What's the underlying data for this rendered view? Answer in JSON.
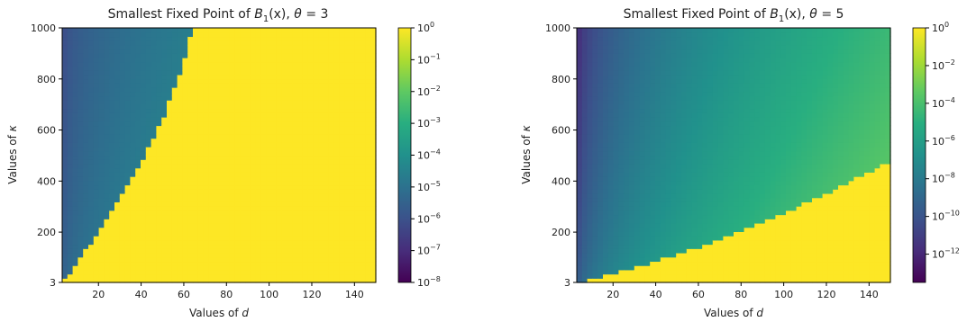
{
  "chart_data": [
    {
      "type": "heatmap",
      "title": "Smallest Fixed Point of B₁(x), θ = 3",
      "title_parts": {
        "prefix": "Smallest Fixed Point of ",
        "fn": "B",
        "sub": "1",
        "arg": "(x), ",
        "param": "θ",
        "eq": " = 3"
      },
      "xlabel": "Values of d",
      "ylabel": "Values of κ",
      "xlim": [
        3,
        150
      ],
      "ylim": [
        3,
        1000
      ],
      "xticks": [
        20,
        40,
        60,
        80,
        100,
        120,
        140
      ],
      "yticks": [
        3,
        200,
        400,
        600,
        800,
        1000
      ],
      "colormap": "viridis",
      "colorbar": {
        "scale": "log",
        "min_exp": -8,
        "max_exp": 0,
        "tick_exponents": [
          0,
          -1,
          -2,
          -3,
          -4,
          -5,
          -6,
          -7,
          -8
        ],
        "tick_labels": [
          "10^0",
          "10^-1",
          "10^-2",
          "10^-3",
          "10^-4",
          "10^-5",
          "10^-6",
          "10^-7",
          "10^-8"
        ]
      },
      "saturated_region": {
        "value": 1,
        "boundary_d": [
          3,
          10,
          20,
          30,
          40,
          50,
          60,
          64
        ],
        "boundary_kappa": [
          3,
          80,
          200,
          330,
          470,
          640,
          860,
          1000
        ]
      },
      "low_region_log10_range": [
        -6.5,
        -3.5
      ]
    },
    {
      "type": "heatmap",
      "title": "Smallest Fixed Point of B₁(x), θ = 5",
      "title_parts": {
        "prefix": "Smallest Fixed Point of ",
        "fn": "B",
        "sub": "1",
        "arg": "(x), ",
        "param": "θ",
        "eq": " = 5"
      },
      "xlabel": "Values of d",
      "ylabel": "Values of κ",
      "xlim": [
        3,
        150
      ],
      "ylim": [
        3,
        1000
      ],
      "xticks": [
        20,
        40,
        60,
        80,
        100,
        120,
        140
      ],
      "yticks": [
        3,
        200,
        400,
        600,
        800,
        1000
      ],
      "colormap": "viridis",
      "colorbar": {
        "scale": "log",
        "min_exp": -13.5,
        "max_exp": 0,
        "tick_exponents": [
          0,
          -2,
          -4,
          -6,
          -8,
          -10,
          -12
        ],
        "tick_labels": [
          "10^0",
          "10^-2",
          "10^-4",
          "10^-6",
          "10^-8",
          "10^-10",
          "10^-12"
        ]
      },
      "saturated_region": {
        "value": 1,
        "boundary_d": [
          3,
          20,
          40,
          60,
          80,
          100,
          120,
          150
        ],
        "boundary_kappa": [
          3,
          40,
          85,
          140,
          205,
          275,
          350,
          480
        ]
      },
      "low_region_log10_range": [
        -13,
        -3.5
      ]
    }
  ]
}
